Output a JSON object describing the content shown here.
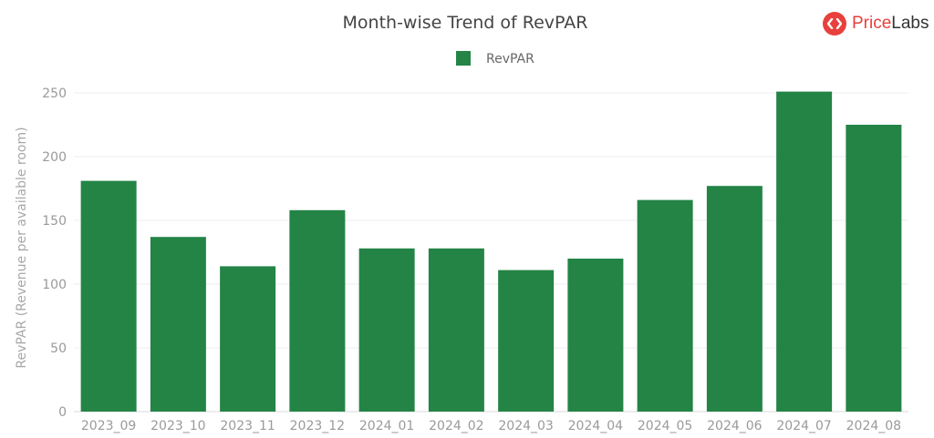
{
  "logo": {
    "part1": "Price",
    "part2": "Labs",
    "icon": "pricelabs-logo-icon",
    "color": "#e8403c"
  },
  "chart_data": {
    "type": "bar",
    "title": "Month-wise Trend of RevPAR",
    "xlabel": "",
    "ylabel": "RevPAR (Revenue per available room)",
    "legend": {
      "position": "top",
      "entries": [
        "RevPAR"
      ]
    },
    "categories": [
      "2023_09",
      "2023_10",
      "2023_11",
      "2023_12",
      "2024_01",
      "2024_02",
      "2024_03",
      "2024_04",
      "2024_05",
      "2024_06",
      "2024_07",
      "2024_08"
    ],
    "series": [
      {
        "name": "RevPAR",
        "color": "#238446",
        "values": [
          181,
          137,
          114,
          158,
          128,
          128,
          111,
          120,
          166,
          177,
          251,
          225
        ]
      }
    ],
    "ylim": [
      0,
      250
    ],
    "yticks": [
      0,
      50,
      100,
      150,
      200,
      250
    ],
    "grid": true
  }
}
